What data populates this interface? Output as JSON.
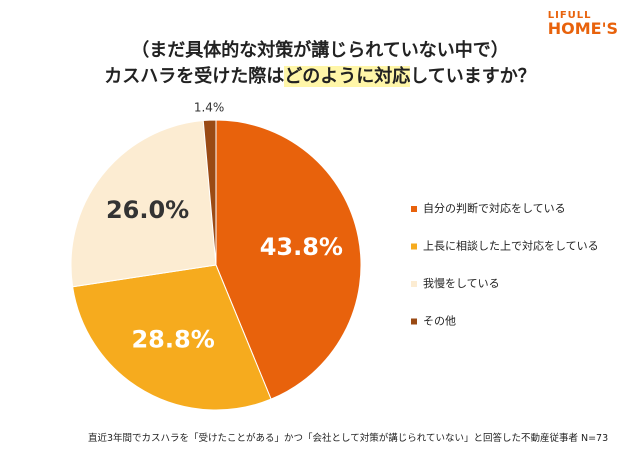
{
  "logo": {
    "line1": "LIFULL",
    "line2": "HOME'S"
  },
  "chart_data": {
    "type": "pie",
    "title": {
      "line1": "（まだ具体的な対策が講じられていない中で）",
      "line2": [
        "カスハラを受けた際は",
        "どのように対応",
        "していますか？"
      ]
    },
    "categories": [
      "自分の判断で対応をしている",
      "上長に相談した上で対応をしている",
      "我慢をしている",
      "その他"
    ],
    "values": [
      43.8,
      28.8,
      26.0,
      1.4
    ],
    "value_labels": [
      "43.8%",
      "28.8%",
      "26.0%",
      "1.4%"
    ],
    "colors": [
      "#e8620c",
      "#f6ab1e",
      "#fcecd2",
      "#9a4a14"
    ],
    "legend": "right",
    "note": "直近3年間でカスハラを「受けたことがある」かつ「会社として対策が講じられていない」と回答した不動産従事者 N=73"
  }
}
